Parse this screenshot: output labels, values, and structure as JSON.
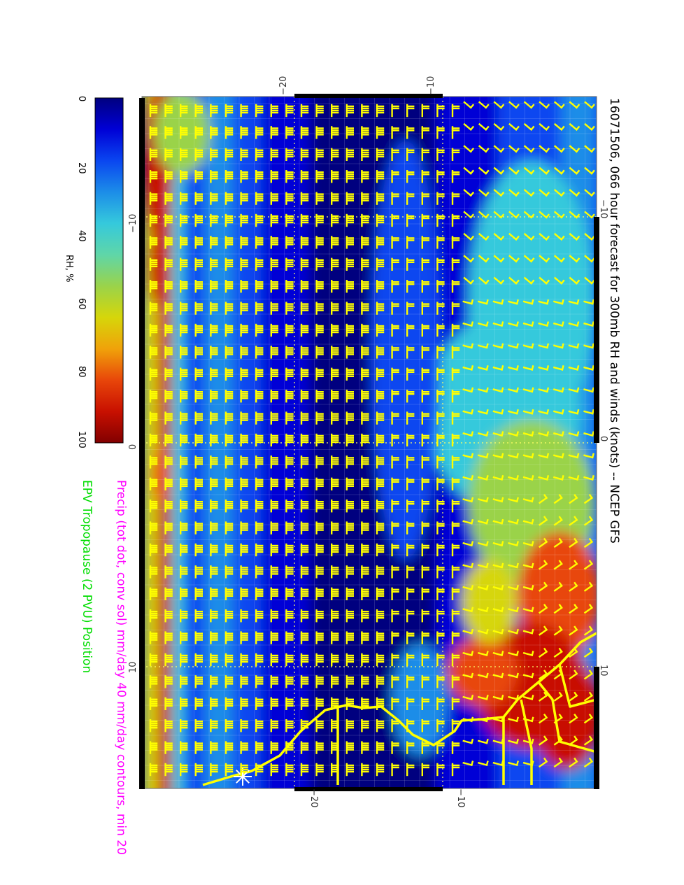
{
  "title": "16071506, 066 hour forecast for 300mb RH and winds (knots) -- NCEP GFS",
  "precip_note": "Precip (tot dot, conv sol) mm/day 40 mm/day contours, min 20",
  "epv_note": "EPV Tropopause (2 PVU) Position",
  "colorbar": {
    "title": "RH, %",
    "ticks": [
      "0",
      "20",
      "40",
      "60",
      "80",
      "100"
    ],
    "min": 0,
    "max": 100,
    "colors": [
      "#00007f",
      "#0000d6",
      "#0a46f0",
      "#1c8de8",
      "#35c9dc",
      "#5fd6a8",
      "#9ad34a",
      "#d6d60a",
      "#f0a20a",
      "#e8460a",
      "#c81000",
      "#820000"
    ]
  },
  "map": {
    "top_axis_labels": [
      "−20",
      "−10"
    ],
    "bottom_axis_labels": [
      "−20",
      "−10"
    ],
    "left_axis_labels": [
      "−10",
      "0",
      "10"
    ],
    "right_axis_labels": [
      "−10",
      "0",
      "10"
    ],
    "barb_color": "#ffff00",
    "coast_color": "#ffff00",
    "grid_color": "#ffff66"
  }
}
